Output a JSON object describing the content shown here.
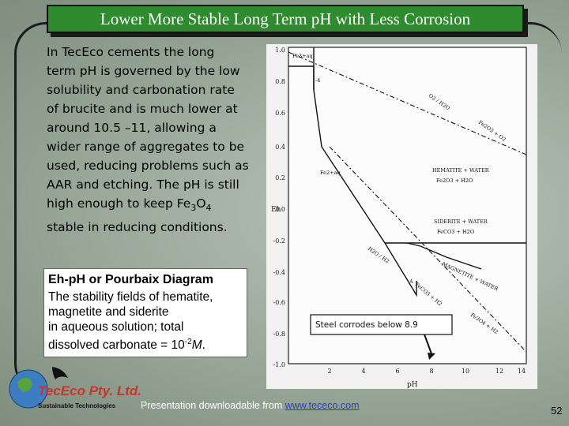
{
  "slide": {
    "title": "Lower More Stable Long Term pH with Less Corrosion",
    "intro_lines": [
      "In TecEco cements the long",
      "term pH is governed by the low",
      "solubility and carbonation rate",
      "of brucite and is much lower at",
      "around 10.5 –11, allowing a",
      "wider range of aggregates to be",
      "used, reducing problems such as",
      "AAR and etching. The pH is still",
      "high enough to keep Fe",
      "stable in reducing conditions."
    ],
    "caption": {
      "heading": "Eh-pH or Pourbaix Diagram",
      "lines": [
        "The stability fields of hematite,",
        "magnetite and siderite",
        "in aqueous solution; total",
        "dissolved carbonate = 10"
      ],
      "exp": "-2",
      "unit": "M"
    },
    "footer": {
      "text": "Presentation downloadable from",
      "url": "www.tececo.com"
    },
    "page_number": "52",
    "logo": {
      "name": "TecEco Pty. Ltd.",
      "tagline": "Sustainable Technologies"
    }
  },
  "diagram": {
    "callout": "Steel corrodes below 8.9",
    "x_axis_label": "pH",
    "y_axis_label": "Eh",
    "x_ticks": [
      "2",
      "4",
      "6",
      "8",
      "10",
      "12",
      "14"
    ],
    "y_ticks": [
      "1.0",
      "0.8",
      "0.6",
      "0.4",
      "0.2",
      "0.0",
      "-0.2",
      "-0.4",
      "-0.6",
      "-0.8",
      "-1.0"
    ],
    "fields": {
      "fe3": "Fe3+aq",
      "fe2": "Fe2+aq",
      "hematite": "HEMATITE + WATER",
      "hematite_formula": "Fe2O3 + H2O",
      "siderite": "SIDERITE + WATER",
      "siderite_formula": "FeCO3 + H2O",
      "magnetite": "MAGNETITE + WATER",
      "o2_h2o": "O2 / H2O",
      "fe2o3_o2": "Fe2O3 + O2",
      "h2o_h2": "H2O / H2",
      "feco3_h2": "FeCO3 + H2",
      "fe3o4_h2": "Fe3O4 + H2",
      "neg4": "-4"
    }
  },
  "colors": {
    "title_bg": "#2e8b2e",
    "footer_url": "#2a3dbf"
  }
}
